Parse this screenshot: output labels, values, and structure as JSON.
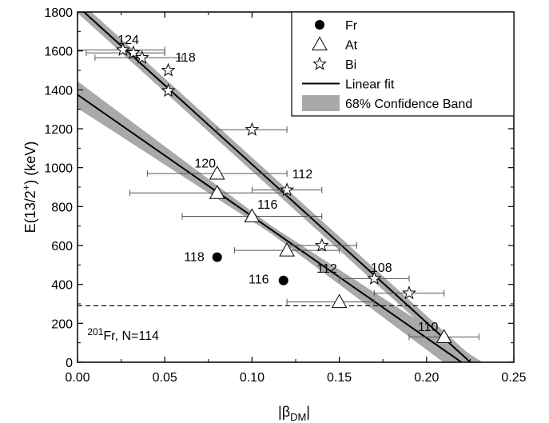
{
  "chart_data": {
    "type": "scatter",
    "xlabel": "|β",
    "xlabel_sub": "DM",
    "xlabel_end": "|",
    "ylabel": "E(13/2",
    "ylabel_sup": "+",
    "ylabel_end": ") (keV)",
    "xlim": [
      0.0,
      0.25
    ],
    "ylim": [
      0,
      1800
    ],
    "xticks": [
      "0.00",
      "0.05",
      "0.10",
      "0.15",
      "0.20",
      "0.25"
    ],
    "yticks": [
      "0",
      "200",
      "400",
      "600",
      "800",
      "1000",
      "1200",
      "1400",
      "1600",
      "1800"
    ],
    "legend_position": "top-right",
    "legend": [
      {
        "label": "Fr",
        "marker": "filled-circle"
      },
      {
        "label": "At",
        "marker": "open-triangle"
      },
      {
        "label": "Bi",
        "marker": "open-star"
      },
      {
        "label": "Linear fit",
        "marker": "line"
      },
      {
        "label": "68% Confidence Band",
        "marker": "band"
      }
    ],
    "series": [
      {
        "name": "Fr",
        "marker": "filled-circle",
        "points": [
          {
            "x": 0.08,
            "y": 540
          },
          {
            "x": 0.118,
            "y": 420
          }
        ]
      },
      {
        "name": "At",
        "marker": "open-triangle",
        "points": [
          {
            "x": 0.08,
            "y": 970,
            "xerr": [
              0.04,
              0.12
            ]
          },
          {
            "x": 0.08,
            "y": 870,
            "xerr": [
              0.03,
              0.12
            ]
          },
          {
            "x": 0.1,
            "y": 750,
            "xerr": [
              0.06,
              0.14
            ]
          },
          {
            "x": 0.12,
            "y": 575,
            "xerr": [
              0.09,
              0.15
            ]
          },
          {
            "x": 0.15,
            "y": 310,
            "xerr": [
              0.12,
              0.17
            ]
          },
          {
            "x": 0.21,
            "y": 130,
            "xerr": [
              0.19,
              0.23
            ]
          }
        ]
      },
      {
        "name": "Bi",
        "marker": "open-star",
        "points": [
          {
            "x": 0.026,
            "y": 1605,
            "xerr": [
              0.0,
              0.05
            ]
          },
          {
            "x": 0.032,
            "y": 1590,
            "xerr": [
              0.005,
              0.05
            ]
          },
          {
            "x": 0.037,
            "y": 1565,
            "xerr": [
              0.01,
              0.06
            ]
          },
          {
            "x": 0.052,
            "y": 1500
          },
          {
            "x": 0.052,
            "y": 1395
          },
          {
            "x": 0.1,
            "y": 1195,
            "xerr": [
              0.08,
              0.12
            ]
          },
          {
            "x": 0.12,
            "y": 885,
            "xerr": [
              0.1,
              0.14
            ]
          },
          {
            "x": 0.14,
            "y": 600,
            "xerr": [
              0.12,
              0.16
            ]
          },
          {
            "x": 0.17,
            "y": 430,
            "xerr": [
              0.15,
              0.19
            ]
          },
          {
            "x": 0.19,
            "y": 355,
            "xerr": [
              0.17,
              0.21
            ]
          }
        ]
      }
    ],
    "fits": [
      {
        "label": "Bi fit",
        "x0": 0.0,
        "y0": 1830,
        "slope": -8130,
        "band": 35
      },
      {
        "label": "At fit",
        "x0": 0.0,
        "y0": 1375,
        "slope": -6250,
        "band_center": 20,
        "band_spread": 450
      }
    ],
    "reference_line": {
      "y": 290,
      "style": "dashed"
    },
    "annotations": [
      {
        "text": "124",
        "x": 0.023,
        "y": 1635
      },
      {
        "text": "118",
        "x": 0.056,
        "y": 1545
      },
      {
        "text": "120",
        "x": 0.067,
        "y": 1000
      },
      {
        "text": "112",
        "x": 0.123,
        "y": 945
      },
      {
        "text": "116",
        "x": 0.103,
        "y": 790
      },
      {
        "text": "118",
        "x": 0.061,
        "y": 520
      },
      {
        "text": "116",
        "x": 0.098,
        "y": 405
      },
      {
        "text": "112",
        "x": 0.137,
        "y": 460
      },
      {
        "text": "108",
        "x": 0.168,
        "y": 465
      },
      {
        "text": "110",
        "x": 0.195,
        "y": 160
      }
    ],
    "reference_label": {
      "text_sup": "201",
      "text": "Fr, N=114",
      "x": 0.002,
      "y": 320
    }
  }
}
